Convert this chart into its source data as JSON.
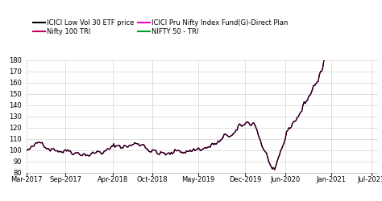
{
  "series_colors": {
    "black": "#000000",
    "dark_pink": "#c00060",
    "magenta": "#ff00cc",
    "green": "#00a020"
  },
  "legend_labels_col1": [
    "ICICI Low Vol 30 ETF price",
    "ICICI Pru Nifty Index Fund(G)-Direct Plan"
  ],
  "legend_labels_col2": [
    "Nifty 100 TRI",
    "NIFTY 50 - TRI"
  ],
  "legend_colors_col1": [
    "#000000",
    "#ff00cc"
  ],
  "legend_colors_col2": [
    "#c00060",
    "#00a020"
  ],
  "ylim": [
    80,
    180
  ],
  "yticks": [
    80,
    90,
    100,
    110,
    120,
    130,
    140,
    150,
    160,
    170,
    180
  ],
  "xtick_labels": [
    "Mar-2017",
    "Sep-2017",
    "Apr-2018",
    "Oct-2018",
    "May-2019",
    "Dec-2019",
    "Jun-2020",
    "Jan-2021",
    "Jul-2021"
  ],
  "tick_positions": [
    0,
    6,
    13,
    19,
    26,
    33,
    39,
    46,
    52
  ],
  "n_points": 300,
  "background_color": "#ffffff",
  "grid_color": "#d3d3d3"
}
